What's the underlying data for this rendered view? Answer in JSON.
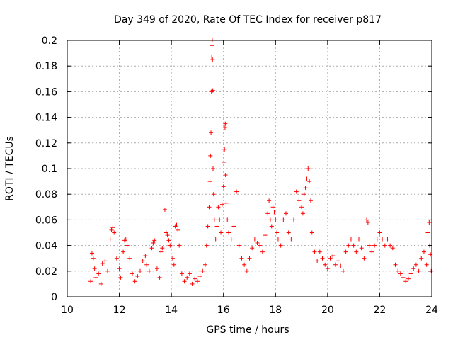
{
  "chart_data": {
    "type": "scatter",
    "title": "Day 349 of 2020, Rate Of TEC Index for receiver p817",
    "xlabel": "GPS time / hours",
    "ylabel": "ROTI / TECUs",
    "xlim": [
      10,
      24
    ],
    "ylim": [
      0,
      0.2
    ],
    "x_ticks": [
      10,
      12,
      14,
      16,
      18,
      20,
      22,
      24
    ],
    "y_ticks": [
      0,
      0.02,
      0.04,
      0.06,
      0.08,
      0.1,
      0.12,
      0.14,
      0.16,
      0.18,
      0.2
    ],
    "x_tick_labels": [
      "10",
      "12",
      "14",
      "16",
      "18",
      "20",
      "22",
      "24"
    ],
    "y_tick_labels": [
      "0",
      "0.02",
      "0.04",
      "0.06",
      "0.08",
      "0.1",
      "0.12",
      "0.14",
      "0.16",
      "0.18",
      "0.2"
    ],
    "grid": true,
    "marker": "+",
    "marker_color": "#ff0000",
    "series": [
      {
        "name": "ROTI",
        "points": [
          [
            10.9,
            0.012
          ],
          [
            10.95,
            0.034
          ],
          [
            11.0,
            0.03
          ],
          [
            11.05,
            0.022
          ],
          [
            11.1,
            0.015
          ],
          [
            11.2,
            0.018
          ],
          [
            11.3,
            0.01
          ],
          [
            11.35,
            0.026
          ],
          [
            11.45,
            0.028
          ],
          [
            11.55,
            0.02
          ],
          [
            11.65,
            0.045
          ],
          [
            11.7,
            0.052
          ],
          [
            11.75,
            0.054
          ],
          [
            11.8,
            0.05
          ],
          [
            11.9,
            0.03
          ],
          [
            12.0,
            0.022
          ],
          [
            12.05,
            0.015
          ],
          [
            12.15,
            0.035
          ],
          [
            12.2,
            0.044
          ],
          [
            12.25,
            0.045
          ],
          [
            12.3,
            0.04
          ],
          [
            12.4,
            0.03
          ],
          [
            12.5,
            0.018
          ],
          [
            12.6,
            0.012
          ],
          [
            12.7,
            0.016
          ],
          [
            12.8,
            0.02
          ],
          [
            12.9,
            0.028
          ],
          [
            13.0,
            0.032
          ],
          [
            13.05,
            0.025
          ],
          [
            13.15,
            0.02
          ],
          [
            13.25,
            0.038
          ],
          [
            13.3,
            0.042
          ],
          [
            13.35,
            0.044
          ],
          [
            13.45,
            0.022
          ],
          [
            13.55,
            0.015
          ],
          [
            13.6,
            0.035
          ],
          [
            13.65,
            0.038
          ],
          [
            13.75,
            0.068
          ],
          [
            13.8,
            0.05
          ],
          [
            13.85,
            0.048
          ],
          [
            13.9,
            0.044
          ],
          [
            13.95,
            0.04
          ],
          [
            14.05,
            0.03
          ],
          [
            14.1,
            0.025
          ],
          [
            14.15,
            0.055
          ],
          [
            14.2,
            0.056
          ],
          [
            14.25,
            0.052
          ],
          [
            14.3,
            0.04
          ],
          [
            14.4,
            0.018
          ],
          [
            14.5,
            0.012
          ],
          [
            14.6,
            0.015
          ],
          [
            14.7,
            0.018
          ],
          [
            14.8,
            0.01
          ],
          [
            14.9,
            0.014
          ],
          [
            15.0,
            0.012
          ],
          [
            15.1,
            0.016
          ],
          [
            15.2,
            0.02
          ],
          [
            15.3,
            0.025
          ],
          [
            15.35,
            0.04
          ],
          [
            15.4,
            0.055
          ],
          [
            15.45,
            0.07
          ],
          [
            15.48,
            0.09
          ],
          [
            15.5,
            0.11
          ],
          [
            15.52,
            0.128
          ],
          [
            15.54,
            0.16
          ],
          [
            15.55,
            0.187
          ],
          [
            15.56,
            0.196
          ],
          [
            15.57,
            0.2
          ],
          [
            15.58,
            0.185
          ],
          [
            15.59,
            0.161
          ],
          [
            15.6,
            0.1
          ],
          [
            15.62,
            0.08
          ],
          [
            15.65,
            0.06
          ],
          [
            15.7,
            0.045
          ],
          [
            15.75,
            0.055
          ],
          [
            15.8,
            0.07
          ],
          [
            15.85,
            0.06
          ],
          [
            15.9,
            0.05
          ],
          [
            15.95,
            0.072
          ],
          [
            16.0,
            0.086
          ],
          [
            16.02,
            0.105
          ],
          [
            16.04,
            0.115
          ],
          [
            16.06,
            0.132
          ],
          [
            16.07,
            0.135
          ],
          [
            16.08,
            0.095
          ],
          [
            16.1,
            0.073
          ],
          [
            16.15,
            0.06
          ],
          [
            16.2,
            0.05
          ],
          [
            16.3,
            0.045
          ],
          [
            16.4,
            0.055
          ],
          [
            16.5,
            0.082
          ],
          [
            16.6,
            0.04
          ],
          [
            16.7,
            0.03
          ],
          [
            16.8,
            0.025
          ],
          [
            16.9,
            0.02
          ],
          [
            17.0,
            0.03
          ],
          [
            17.1,
            0.038
          ],
          [
            17.2,
            0.045
          ],
          [
            17.3,
            0.042
          ],
          [
            17.4,
            0.04
          ],
          [
            17.5,
            0.035
          ],
          [
            17.6,
            0.048
          ],
          [
            17.7,
            0.065
          ],
          [
            17.75,
            0.075
          ],
          [
            17.8,
            0.06
          ],
          [
            17.85,
            0.055
          ],
          [
            17.9,
            0.07
          ],
          [
            17.95,
            0.066
          ],
          [
            18.0,
            0.06
          ],
          [
            18.05,
            0.05
          ],
          [
            18.1,
            0.045
          ],
          [
            18.2,
            0.04
          ],
          [
            18.3,
            0.06
          ],
          [
            18.4,
            0.065
          ],
          [
            18.5,
            0.05
          ],
          [
            18.6,
            0.045
          ],
          [
            18.7,
            0.06
          ],
          [
            18.8,
            0.082
          ],
          [
            18.9,
            0.075
          ],
          [
            19.0,
            0.07
          ],
          [
            19.05,
            0.065
          ],
          [
            19.1,
            0.08
          ],
          [
            19.15,
            0.085
          ],
          [
            19.2,
            0.092
          ],
          [
            19.25,
            0.1
          ],
          [
            19.3,
            0.09
          ],
          [
            19.35,
            0.075
          ],
          [
            19.4,
            0.05
          ],
          [
            19.5,
            0.035
          ],
          [
            19.6,
            0.028
          ],
          [
            19.7,
            0.035
          ],
          [
            19.8,
            0.03
          ],
          [
            19.9,
            0.025
          ],
          [
            20.0,
            0.022
          ],
          [
            20.1,
            0.03
          ],
          [
            20.2,
            0.032
          ],
          [
            20.3,
            0.025
          ],
          [
            20.4,
            0.028
          ],
          [
            20.5,
            0.024
          ],
          [
            20.6,
            0.02
          ],
          [
            20.7,
            0.035
          ],
          [
            20.8,
            0.04
          ],
          [
            20.9,
            0.045
          ],
          [
            21.0,
            0.04
          ],
          [
            21.1,
            0.035
          ],
          [
            21.2,
            0.045
          ],
          [
            21.3,
            0.038
          ],
          [
            21.4,
            0.03
          ],
          [
            21.5,
            0.06
          ],
          [
            21.55,
            0.058
          ],
          [
            21.6,
            0.04
          ],
          [
            21.7,
            0.035
          ],
          [
            21.8,
            0.04
          ],
          [
            21.9,
            0.045
          ],
          [
            22.0,
            0.05
          ],
          [
            22.1,
            0.045
          ],
          [
            22.2,
            0.04
          ],
          [
            22.3,
            0.045
          ],
          [
            22.4,
            0.04
          ],
          [
            22.5,
            0.038
          ],
          [
            22.6,
            0.025
          ],
          [
            22.7,
            0.02
          ],
          [
            22.8,
            0.018
          ],
          [
            22.9,
            0.015
          ],
          [
            23.0,
            0.012
          ],
          [
            23.1,
            0.014
          ],
          [
            23.2,
            0.018
          ],
          [
            23.3,
            0.022
          ],
          [
            23.4,
            0.025
          ],
          [
            23.5,
            0.02
          ],
          [
            23.6,
            0.03
          ],
          [
            23.7,
            0.035
          ],
          [
            23.8,
            0.025
          ],
          [
            23.85,
            0.05
          ],
          [
            23.9,
            0.058
          ],
          [
            23.92,
            0.04
          ],
          [
            23.95,
            0.033
          ],
          [
            23.98,
            0.02
          ]
        ]
      }
    ]
  }
}
